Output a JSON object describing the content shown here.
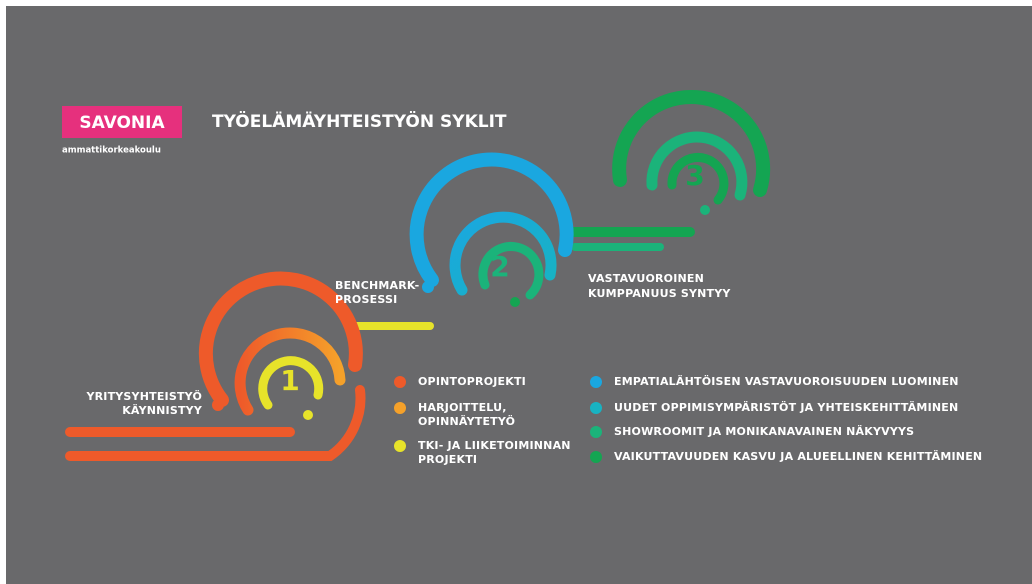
{
  "logo": {
    "name": "SAVONIA",
    "subtitle": "ammattikorkeakoulu"
  },
  "title": "TYÖELÄMÄYHTEISTYÖN SYKLIT",
  "cycles": [
    {
      "number": "1"
    },
    {
      "number": "2"
    },
    {
      "number": "3"
    }
  ],
  "stage_labels": [
    {
      "lines": [
        "YRITYSYHTEISTYÖ",
        "KÄYNNISTYY"
      ]
    },
    {
      "lines": [
        "BENCHMARK-",
        "PROSESSI"
      ]
    },
    {
      "lines": [
        "VASTAVUOROINEN",
        "KUMPPANUUS SYNTYY"
      ]
    }
  ],
  "legend": [
    {
      "color": "#ee5a2a",
      "lines": [
        "OPINTOPROJEKTI"
      ]
    },
    {
      "color": "#f5a12a",
      "lines": [
        "HARJOITTELU,",
        "OPINNÄYTETYÖ"
      ]
    },
    {
      "color": "#e7e32a",
      "lines": [
        "TKI- JA LIIKETOIMINNAN",
        "PROJEKTI"
      ]
    },
    {
      "color": "#1aa7e0",
      "lines": [
        "EMPATIALÄHTÖISEN VASTAVUOROISUUDEN LUOMINEN"
      ]
    },
    {
      "color": "#18b3c2",
      "lines": [
        "UUDET OPPIMISYMPÄRISTÖT JA YHTEISKEHITTÄMINEN"
      ]
    },
    {
      "color": "#1bb37a",
      "lines": [
        "SHOWROOMIT JA MONIKANAVAINEN NÄKYVYYS"
      ]
    },
    {
      "color": "#14a552",
      "lines": [
        "VAIKUTTAVUUDEN KASVU JA ALUEELLINEN KEHITTÄMINEN"
      ]
    }
  ]
}
